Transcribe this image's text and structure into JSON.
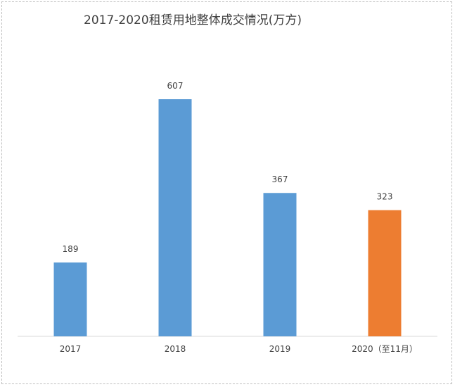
{
  "chart_data": {
    "type": "bar",
    "title": "2017-2020租赁用地整体成交情况(万方)",
    "categories": [
      "2017",
      "2018",
      "2019",
      "2020（至11月）"
    ],
    "values": [
      189,
      607,
      367,
      323
    ],
    "data_labels": [
      "189",
      "607",
      "367",
      "323"
    ],
    "bar_colors": [
      "#5b9bd5",
      "#5b9bd5",
      "#5b9bd5",
      "#ed7d31"
    ],
    "xlabel": "",
    "ylabel": "",
    "ylim": [
      0,
      650
    ],
    "grid": false,
    "legend": "none"
  }
}
